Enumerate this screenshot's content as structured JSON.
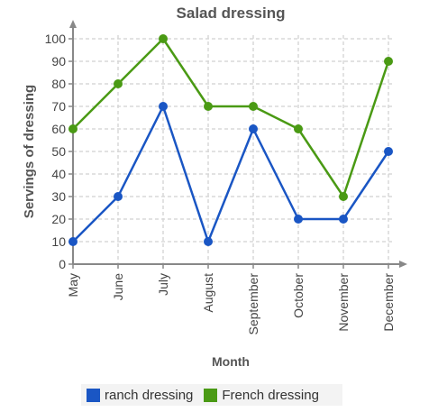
{
  "chart_data": {
    "type": "line",
    "title": "Salad dressing",
    "xlabel": "Month",
    "ylabel": "Servings of dressing",
    "categories": [
      "May",
      "June",
      "July",
      "August",
      "September",
      "October",
      "November",
      "December"
    ],
    "ylim": [
      0,
      100
    ],
    "yticks": [
      0,
      10,
      20,
      30,
      40,
      50,
      60,
      70,
      80,
      90,
      100
    ],
    "grid": true,
    "legend_position": "bottom",
    "series": [
      {
        "name": "ranch dressing",
        "color": "#1a56c4",
        "values": [
          10,
          30,
          70,
          10,
          60,
          20,
          20,
          50
        ]
      },
      {
        "name": "French dressing",
        "color": "#4a9a14",
        "values": [
          60,
          80,
          100,
          70,
          70,
          60,
          30,
          90
        ]
      }
    ]
  }
}
